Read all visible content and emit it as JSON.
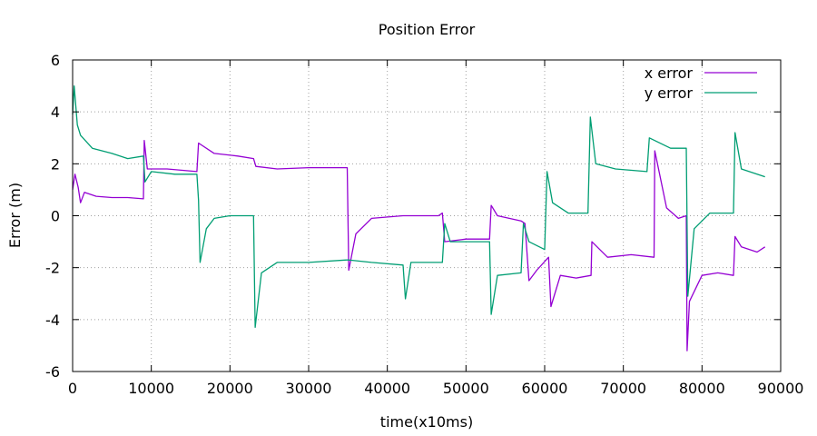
{
  "chart_data": {
    "type": "line",
    "title": "Position Error",
    "xlabel": "time(x10ms)",
    "ylabel": "Error (m)",
    "xlim": [
      0,
      90000
    ],
    "ylim": [
      -6,
      6
    ],
    "x_ticks": [
      0,
      10000,
      20000,
      30000,
      40000,
      50000,
      60000,
      70000,
      80000,
      90000
    ],
    "x_tick_labels": [
      "0",
      "10000",
      "20000",
      "30000",
      "40000",
      "50000",
      "60000",
      "70000",
      "80000",
      "90000"
    ],
    "y_ticks": [
      -6,
      -4,
      -2,
      0,
      2,
      4,
      6
    ],
    "y_tick_labels": [
      "-6",
      "-4",
      "-2",
      "0",
      "2",
      "4",
      "6"
    ],
    "grid": true,
    "legend_position": "top-right",
    "series": [
      {
        "name": "x error",
        "color": "#9400d3",
        "points": [
          [
            0,
            1.0
          ],
          [
            300,
            1.6
          ],
          [
            700,
            1.1
          ],
          [
            1000,
            0.5
          ],
          [
            1500,
            0.9
          ],
          [
            3000,
            0.75
          ],
          [
            5000,
            0.7
          ],
          [
            7000,
            0.7
          ],
          [
            9000,
            0.65
          ],
          [
            9100,
            2.9
          ],
          [
            9500,
            1.8
          ],
          [
            12000,
            1.8
          ],
          [
            15800,
            1.7
          ],
          [
            16000,
            2.8
          ],
          [
            18000,
            2.4
          ],
          [
            21000,
            2.3
          ],
          [
            23000,
            2.2
          ],
          [
            23300,
            1.9
          ],
          [
            26000,
            1.8
          ],
          [
            30000,
            1.85
          ],
          [
            34900,
            1.85
          ],
          [
            35100,
            -2.1
          ],
          [
            36000,
            -0.7
          ],
          [
            38000,
            -0.1
          ],
          [
            42000,
            0.0
          ],
          [
            46500,
            0.0
          ],
          [
            47000,
            0.1
          ],
          [
            47300,
            -1.0
          ],
          [
            50000,
            -0.9
          ],
          [
            53000,
            -0.9
          ],
          [
            53200,
            0.4
          ],
          [
            54000,
            0.0
          ],
          [
            57000,
            -0.2
          ],
          [
            57500,
            -0.3
          ],
          [
            58000,
            -2.5
          ],
          [
            59000,
            -2.1
          ],
          [
            60500,
            -1.6
          ],
          [
            60800,
            -3.5
          ],
          [
            62000,
            -2.3
          ],
          [
            64000,
            -2.4
          ],
          [
            65900,
            -2.3
          ],
          [
            66000,
            -1.0
          ],
          [
            68000,
            -1.6
          ],
          [
            71000,
            -1.5
          ],
          [
            73900,
            -1.6
          ],
          [
            74000,
            2.5
          ],
          [
            75500,
            0.3
          ],
          [
            77000,
            -0.1
          ],
          [
            78000,
            0.0
          ],
          [
            78100,
            -5.2
          ],
          [
            78400,
            -3.3
          ],
          [
            80000,
            -2.3
          ],
          [
            82000,
            -2.2
          ],
          [
            84000,
            -2.3
          ],
          [
            84200,
            -0.8
          ],
          [
            85000,
            -1.2
          ],
          [
            87000,
            -1.4
          ],
          [
            88000,
            -1.2
          ]
        ]
      },
      {
        "name": "y error",
        "color": "#009e73",
        "points": [
          [
            0,
            3.9
          ],
          [
            200,
            5.0
          ],
          [
            600,
            3.5
          ],
          [
            1000,
            3.1
          ],
          [
            2500,
            2.6
          ],
          [
            5000,
            2.4
          ],
          [
            7000,
            2.2
          ],
          [
            9000,
            2.3
          ],
          [
            9200,
            1.3
          ],
          [
            10000,
            1.7
          ],
          [
            13000,
            1.6
          ],
          [
            15800,
            1.6
          ],
          [
            16000,
            0.6
          ],
          [
            16200,
            -1.8
          ],
          [
            17000,
            -0.5
          ],
          [
            18000,
            -0.1
          ],
          [
            20000,
            0.0
          ],
          [
            23000,
            0.0
          ],
          [
            23200,
            -4.3
          ],
          [
            24000,
            -2.2
          ],
          [
            26000,
            -1.8
          ],
          [
            30000,
            -1.8
          ],
          [
            35000,
            -1.7
          ],
          [
            38000,
            -1.8
          ],
          [
            42000,
            -1.9
          ],
          [
            42300,
            -3.2
          ],
          [
            43000,
            -1.8
          ],
          [
            47000,
            -1.8
          ],
          [
            47300,
            -0.3
          ],
          [
            48000,
            -1.0
          ],
          [
            50000,
            -1.0
          ],
          [
            53000,
            -1.0
          ],
          [
            53200,
            -3.8
          ],
          [
            54000,
            -2.3
          ],
          [
            57000,
            -2.2
          ],
          [
            57300,
            -0.3
          ],
          [
            58000,
            -1.0
          ],
          [
            60000,
            -1.3
          ],
          [
            60300,
            1.7
          ],
          [
            61000,
            0.5
          ],
          [
            63000,
            0.1
          ],
          [
            65500,
            0.1
          ],
          [
            65800,
            3.8
          ],
          [
            66500,
            2.0
          ],
          [
            69000,
            1.8
          ],
          [
            73000,
            1.7
          ],
          [
            73300,
            3.0
          ],
          [
            76000,
            2.6
          ],
          [
            78000,
            2.6
          ],
          [
            78200,
            -3.1
          ],
          [
            79000,
            -0.5
          ],
          [
            81000,
            0.1
          ],
          [
            84000,
            0.1
          ],
          [
            84200,
            3.2
          ],
          [
            85000,
            1.8
          ],
          [
            88000,
            1.5
          ]
        ]
      }
    ]
  }
}
